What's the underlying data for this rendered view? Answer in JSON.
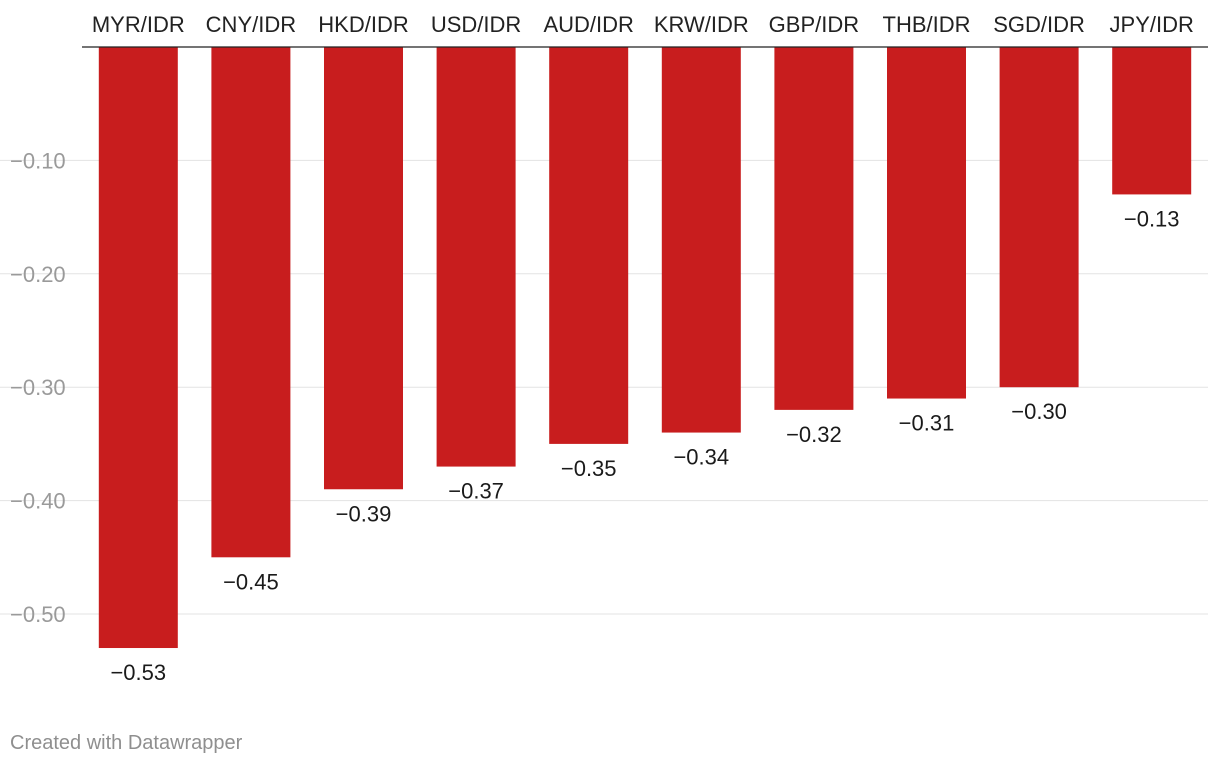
{
  "chart_data": {
    "type": "bar",
    "categories": [
      "MYR/IDR",
      "CNY/IDR",
      "HKD/IDR",
      "USD/IDR",
      "AUD/IDR",
      "KRW/IDR",
      "GBP/IDR",
      "THB/IDR",
      "SGD/IDR",
      "JPY/IDR"
    ],
    "values": [
      -0.53,
      -0.45,
      -0.39,
      -0.37,
      -0.35,
      -0.34,
      -0.32,
      -0.31,
      -0.3,
      -0.13
    ],
    "value_labels": [
      "−0.53",
      "−0.45",
      "−0.39",
      "−0.37",
      "−0.35",
      "−0.34",
      "−0.32",
      "−0.31",
      "−0.30",
      "−0.13"
    ],
    "ylim": [
      -0.53,
      0
    ],
    "yticks": [
      -0.1,
      -0.2,
      -0.3,
      -0.4,
      -0.5
    ],
    "ytick_labels": [
      "−0.10",
      "−0.20",
      "−0.30",
      "−0.40",
      "−0.50"
    ],
    "category_axis_position": "top",
    "grid": true,
    "bar_color": "#c81d1e"
  },
  "footer": {
    "credit": "Created with Datawrapper"
  }
}
